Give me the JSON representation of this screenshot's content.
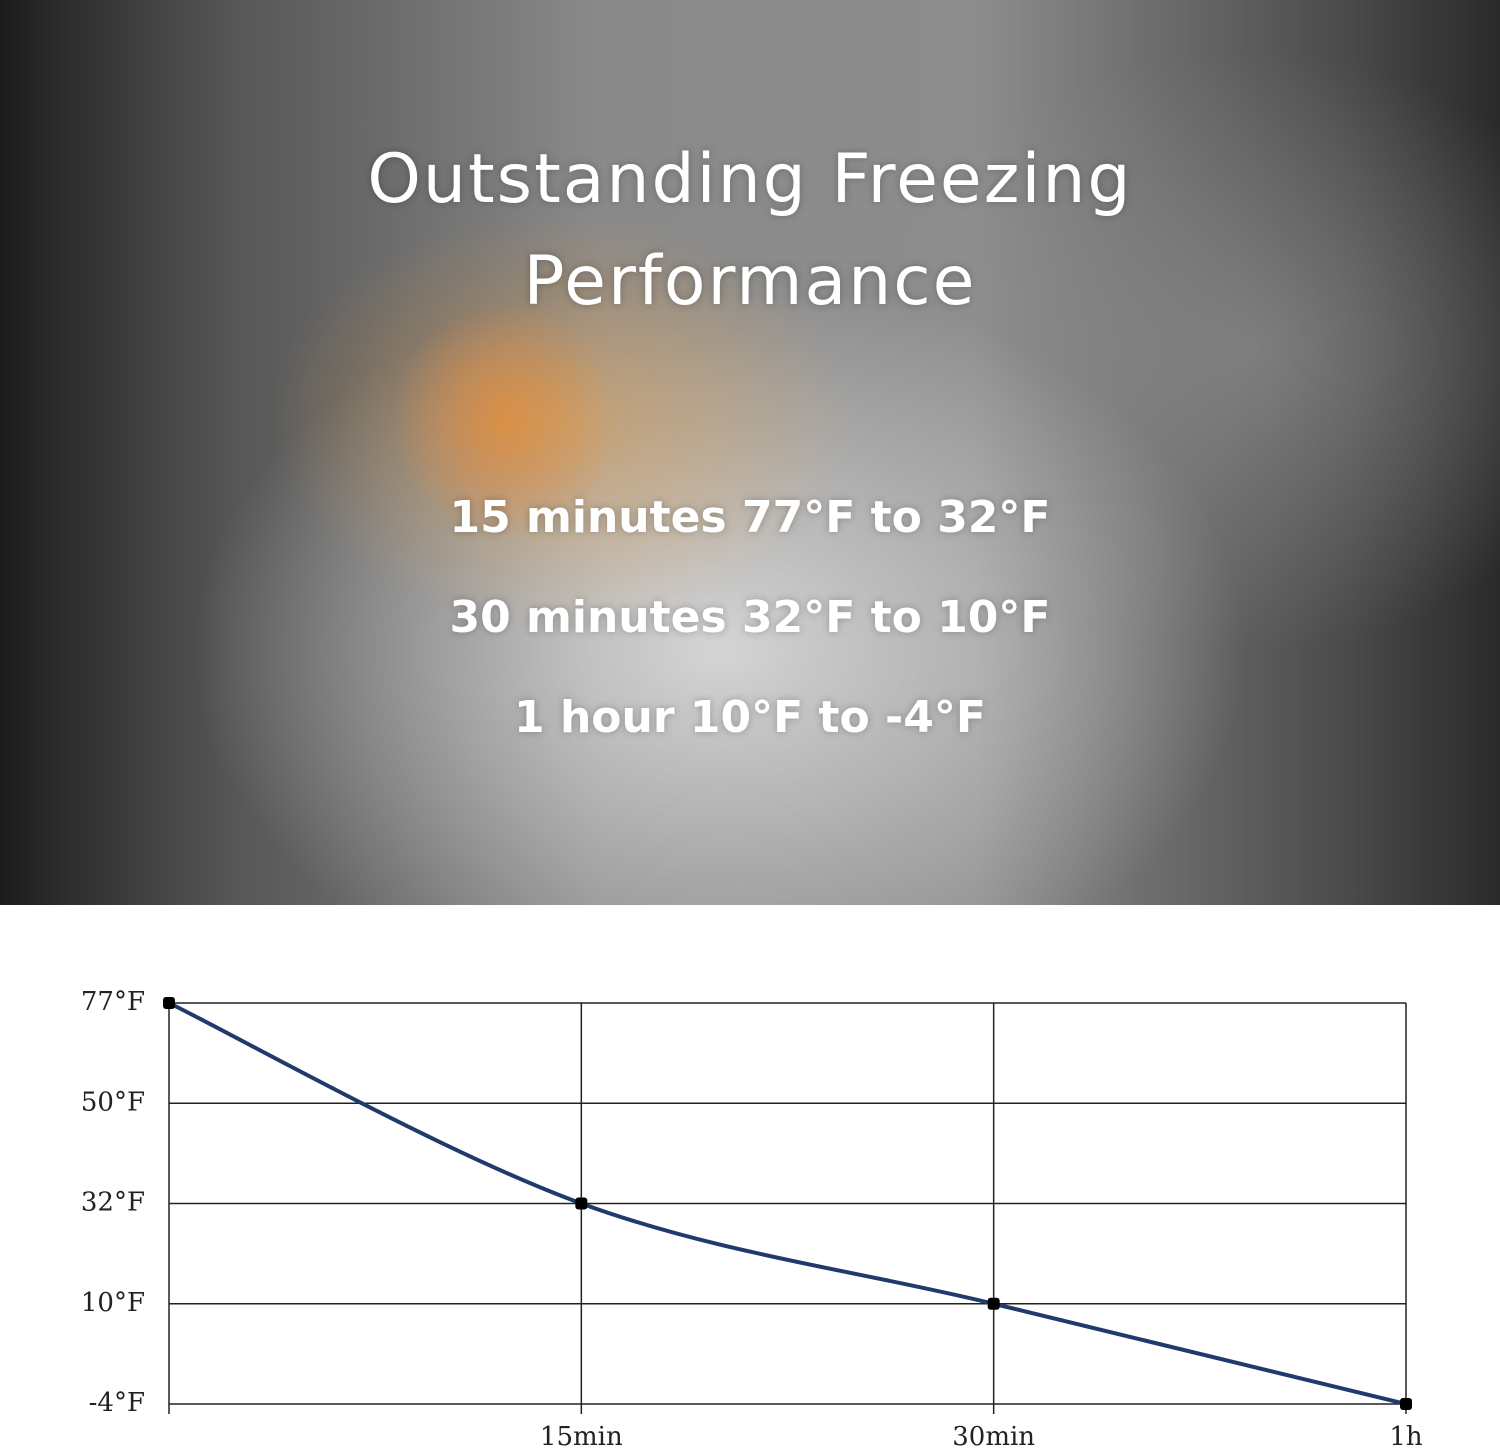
{
  "header": {
    "title_lines": [
      "Outstanding Freezing",
      "Performance"
    ],
    "facts": [
      "15 minutes 77°F to 32°F",
      "30 minutes 32°F to 10°F",
      "1 hour 10°F to -4°F"
    ]
  },
  "chart_data": {
    "type": "line",
    "categories": [
      null,
      "15min",
      "30min",
      "1h"
    ],
    "series": [
      {
        "name": null,
        "color": "#1f3a6b",
        "values": [
          77,
          32,
          10,
          -4
        ]
      }
    ],
    "ylim": [
      -4,
      77
    ],
    "yticks": [
      {
        "value": 77,
        "label": "77°F"
      },
      {
        "value": 50,
        "label": "50°F"
      },
      {
        "value": 32,
        "label": "32°F"
      },
      {
        "value": 10,
        "label": "10°F"
      },
      {
        "value": -4,
        "label": "-4°F"
      }
    ],
    "grid": true
  }
}
